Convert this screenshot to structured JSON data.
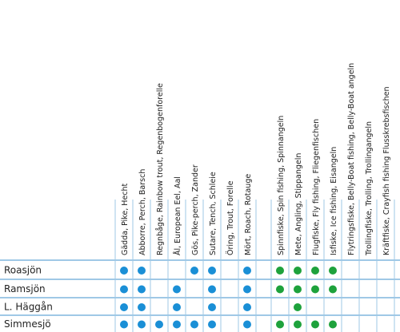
{
  "fish_columns": [
    "Gädda, Pike, Hecht",
    "Abborre, Perch, Barsch",
    "Regnbåge, Rainbow trout, Regenbogenforelle",
    "Ål, European Eel, Aal",
    "Gös, Pike-perch, Zander",
    "Sutare, Tench, Schleie",
    "Öring, Trout, Forelle",
    "Mört, Roach, Rotauge"
  ],
  "method_columns": [
    "Spinnfiske, Spin fishing, Spinnangeln",
    "Mete, Angling, Stippangeln",
    "Flugfiske, Fly fishing, Fliegenfischen",
    "Isfiske, Ice fishing, Eisangeln",
    "Flytringsfiske, Belly-Boat fishing, Belly-Boat angeln",
    "Trollingfiske, Trolling, Trollingangeln",
    "Kräftfiske, Crayfish fishing Flusskrebsfischen"
  ],
  "fish_color": "#1a8fd6",
  "method_color": "#1ea23c",
  "rows": [
    {
      "name": "Roasjön",
      "fish": [
        1,
        1,
        0,
        0,
        1,
        1,
        0,
        1
      ],
      "methods": [
        1,
        1,
        1,
        1,
        0,
        0,
        0
      ]
    },
    {
      "name": "Ramsjön",
      "fish": [
        1,
        1,
        0,
        1,
        0,
        1,
        0,
        1
      ],
      "methods": [
        1,
        1,
        1,
        1,
        0,
        0,
        0
      ]
    },
    {
      "name": "L. Häggån",
      "fish": [
        1,
        1,
        0,
        1,
        0,
        1,
        0,
        1
      ],
      "methods": [
        0,
        1,
        0,
        0,
        0,
        0,
        0
      ]
    },
    {
      "name": "Simmesjö",
      "fish": [
        1,
        1,
        1,
        1,
        1,
        1,
        0,
        1
      ],
      "methods": [
        1,
        1,
        1,
        1,
        0,
        0,
        0
      ]
    }
  ]
}
